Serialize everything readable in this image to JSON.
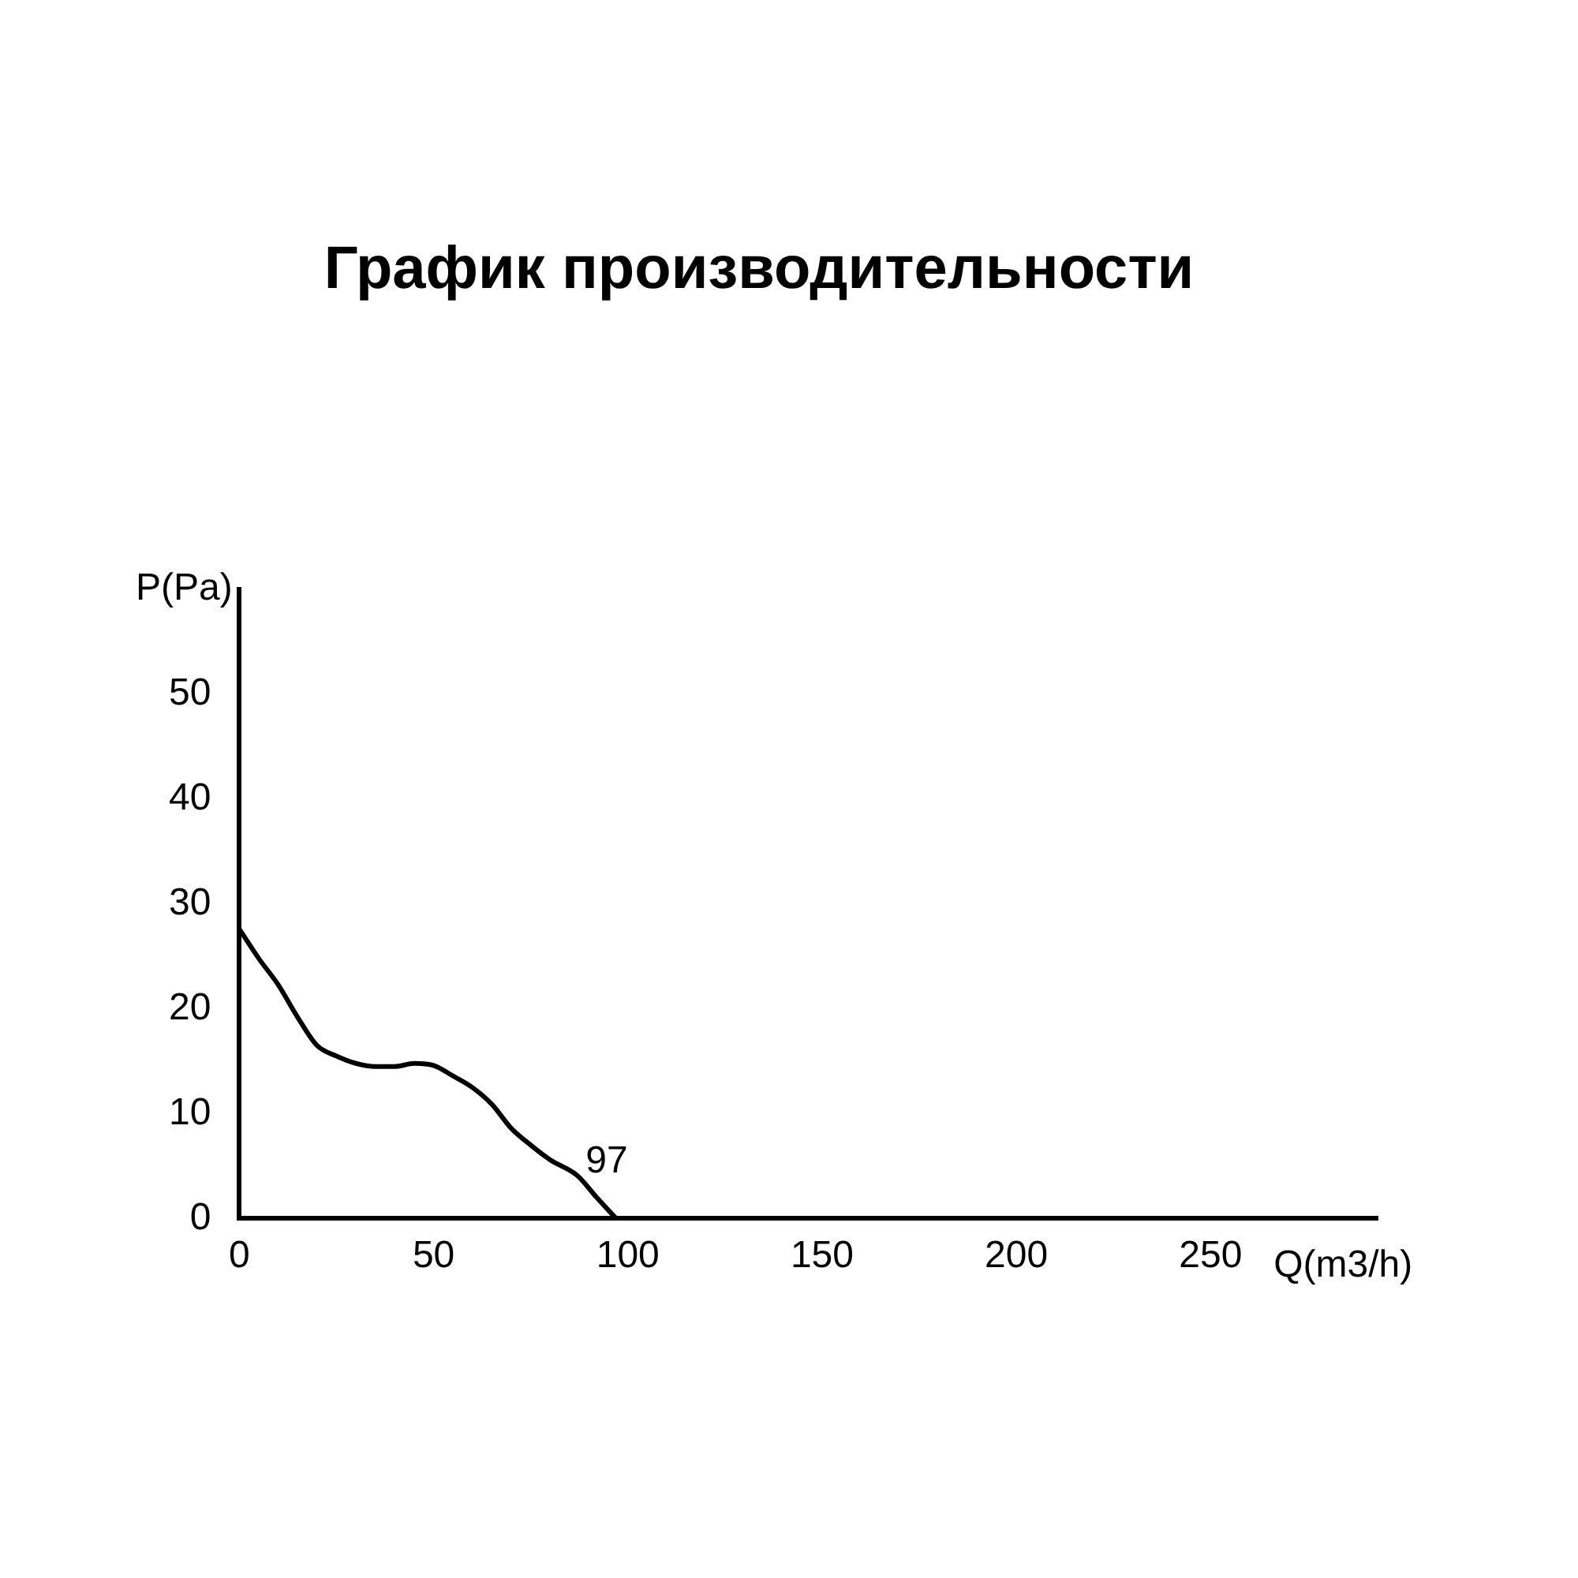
{
  "chart_data": {
    "type": "line",
    "title": "График производительности",
    "xlabel": "Q(m3/h)",
    "ylabel": "P(Pa)",
    "x": [
      0,
      5,
      10,
      15,
      20,
      25,
      30,
      35,
      40,
      45,
      50,
      55,
      60,
      65,
      70,
      75,
      80,
      87,
      92,
      97
    ],
    "series": [
      {
        "color": "#000000",
        "values": [
          27.6,
          24.8,
          22.3,
          19.2,
          16.5,
          15.5,
          14.8,
          14.5,
          14.5,
          14.8,
          14.6,
          13.6,
          12.5,
          10.9,
          8.6,
          7,
          5.6,
          4.1,
          2,
          0
        ]
      }
    ],
    "xlim": [
      0,
      293
    ],
    "ylim": [
      0,
      60
    ],
    "xticks": [
      0,
      50,
      100,
      150,
      200,
      250
    ],
    "yticks": [
      0,
      10,
      20,
      30,
      40,
      50
    ],
    "annotations": [
      {
        "text": "97",
        "x": 97,
        "y": 0
      }
    ],
    "grid": false,
    "legend": false,
    "marker": "none",
    "line_style": "solid"
  }
}
